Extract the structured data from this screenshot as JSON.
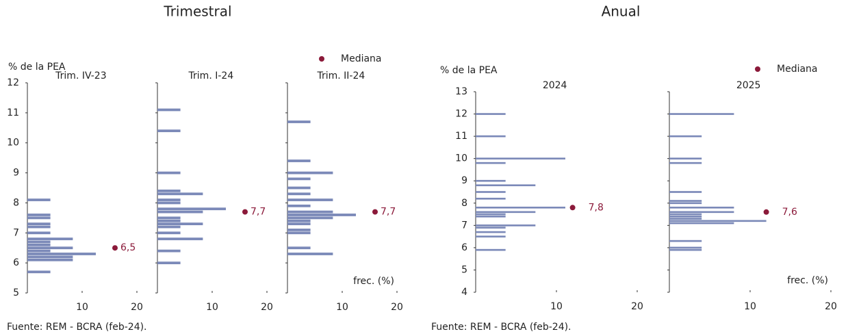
{
  "chart_data": [
    {
      "type": "hbar-panels",
      "title": "Trimestral",
      "ylabel": "% de la PEA",
      "legend": "Mediana",
      "xlabel": "frec. (%)",
      "source": "Fuente: REM - BCRA (feb-24).",
      "color": "#7b89b8",
      "median_color": "#8b1a3a",
      "ylim": [
        5,
        12
      ],
      "yticks": [
        5,
        6,
        7,
        8,
        9,
        10,
        11,
        12
      ],
      "xlim": [
        0,
        20
      ],
      "xticks": [
        10,
        20
      ],
      "panels": [
        {
          "title": "Trim. IV-23",
          "y": [
            8.1,
            7.6,
            7.5,
            7.3,
            7.2,
            7.0,
            6.8,
            6.7,
            6.6,
            6.5,
            6.4,
            6.3,
            6.2,
            6.1,
            5.7
          ],
          "values": [
            4.2,
            4.2,
            4.2,
            4.2,
            4.2,
            4.2,
            8.3,
            4.2,
            4.2,
            8.3,
            4.2,
            12.5,
            8.3,
            8.3,
            4.2
          ],
          "median": 6.5,
          "median_label": "6,5"
        },
        {
          "title": "Trim. I-24",
          "y": [
            11.1,
            10.4,
            9.0,
            8.4,
            8.3,
            8.1,
            8.0,
            7.8,
            7.7,
            7.5,
            7.4,
            7.3,
            7.2,
            7.0,
            6.8,
            6.4,
            6.0
          ],
          "values": [
            4.2,
            4.2,
            4.2,
            4.2,
            8.3,
            4.2,
            4.2,
            12.5,
            8.3,
            4.2,
            4.2,
            8.3,
            4.2,
            4.2,
            8.3,
            4.2,
            4.2
          ],
          "median": 7.7,
          "median_label": "7,7"
        },
        {
          "title": "Trim. II-24",
          "y": [
            10.7,
            9.4,
            9.0,
            8.8,
            8.5,
            8.3,
            8.1,
            7.9,
            7.7,
            7.6,
            7.5,
            7.4,
            7.3,
            7.1,
            7.0,
            6.5,
            6.3
          ],
          "values": [
            4.2,
            4.2,
            8.3,
            4.2,
            4.2,
            4.2,
            8.3,
            4.2,
            8.3,
            12.5,
            8.3,
            4.2,
            4.2,
            4.2,
            4.2,
            4.2,
            8.3
          ],
          "median": 7.7,
          "median_label": "7,7"
        }
      ]
    },
    {
      "type": "hbar-panels",
      "title": "Anual",
      "ylabel": "% de la PEA",
      "legend": "Mediana",
      "xlabel": "frec. (%)",
      "source": "Fuente: REM - BCRA (feb-24).",
      "color": "#7b89b8",
      "median_color": "#8b1a3a",
      "ylim": [
        4,
        13
      ],
      "yticks": [
        4,
        5,
        6,
        7,
        8,
        9,
        10,
        11,
        12,
        13
      ],
      "xlim": [
        0,
        20
      ],
      "xticks": [
        10,
        20
      ],
      "panels": [
        {
          "title": "2024",
          "y": [
            12.0,
            11.0,
            10.0,
            9.8,
            9.0,
            8.8,
            8.5,
            8.2,
            7.8,
            7.6,
            7.5,
            7.4,
            7.0,
            6.9,
            6.7,
            6.5,
            5.9
          ],
          "values": [
            3.7,
            3.7,
            11.1,
            3.7,
            3.7,
            7.4,
            3.7,
            3.7,
            11.1,
            7.4,
            3.7,
            3.7,
            7.4,
            3.7,
            3.7,
            3.7,
            3.7
          ],
          "median": 7.8,
          "median_label": "7,8"
        },
        {
          "title": "2025",
          "y": [
            12.0,
            11.0,
            10.0,
            9.8,
            8.5,
            8.1,
            8.0,
            7.8,
            7.6,
            7.5,
            7.4,
            7.3,
            7.2,
            7.1,
            6.3,
            6.0,
            5.9
          ],
          "values": [
            8.0,
            4.0,
            4.0,
            4.0,
            4.0,
            4.0,
            4.0,
            8.0,
            8.0,
            4.0,
            4.0,
            4.0,
            12.0,
            8.0,
            4.0,
            4.0,
            4.0
          ],
          "median": 7.6,
          "median_label": "7,6"
        }
      ]
    }
  ]
}
